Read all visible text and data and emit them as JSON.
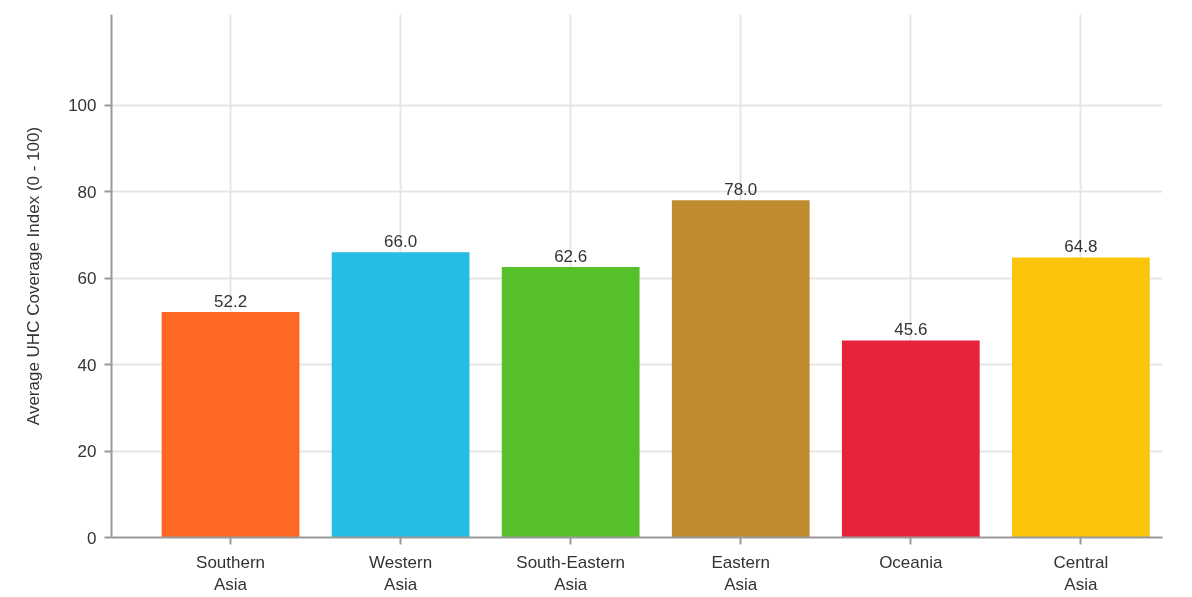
{
  "chart_data": {
    "type": "bar",
    "ylabel": "Average UHC Coverage Index (0 - 100)",
    "categories": [
      "Southern Asia",
      "Western Asia",
      "South-Eastern Asia",
      "Eastern Asia",
      "Oceania",
      "Central Asia"
    ],
    "values": [
      52.2,
      66.0,
      62.6,
      78.0,
      45.6,
      64.8
    ],
    "colors": [
      "#fd6925",
      "#26bde2",
      "#56c02b",
      "#bf8b2e",
      "#e5243b",
      "#fcc30b"
    ],
    "value_labels": [
      "52.2",
      "66.0",
      "62.6",
      "78.0",
      "45.6",
      "64.8"
    ],
    "ylim": [
      0,
      121
    ],
    "yticks": [
      0,
      20,
      40,
      60,
      80,
      100
    ],
    "grid": true
  }
}
